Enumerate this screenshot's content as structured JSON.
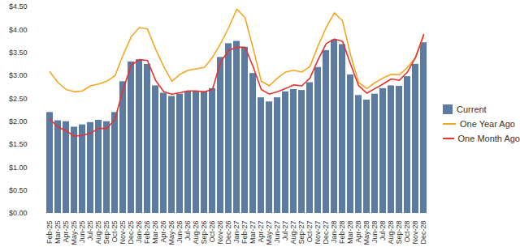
{
  "chart_data": {
    "type": "bar",
    "categories": [
      "Feb-25",
      "Mar-25",
      "Apr-25",
      "May-25",
      "Jun-25",
      "Jul-25",
      "Aug-25",
      "Sep-25",
      "Oct-25",
      "Nov-25",
      "Dec-25",
      "Jan-26",
      "Feb-26",
      "Mar-26",
      "Apr-26",
      "May-26",
      "Jun-26",
      "Jul-26",
      "Aug-26",
      "Sep-26",
      "Oct-26",
      "Nov-26",
      "Dec-26",
      "Jan-27",
      "Feb-27",
      "Mar-27",
      "Apr-27",
      "May-27",
      "Jun-27",
      "Jul-27",
      "Aug-27",
      "Sep-27",
      "Oct-27",
      "Nov-27",
      "Dec-27",
      "Jan-28",
      "Feb-28",
      "Mar-28",
      "Apr-28",
      "May-28",
      "Jun-28",
      "Jul-28",
      "Aug-28",
      "Sep-28",
      "Oct-28",
      "Nov-28",
      "Dec-28"
    ],
    "series": [
      {
        "name": "Current",
        "type": "bar",
        "color": "#5b7ba3",
        "values": [
          2.2,
          2.02,
          2.0,
          1.88,
          1.93,
          1.98,
          2.03,
          2.0,
          2.2,
          2.87,
          3.3,
          3.35,
          3.25,
          2.78,
          2.62,
          2.55,
          2.6,
          2.65,
          2.65,
          2.65,
          2.72,
          3.4,
          3.7,
          3.75,
          3.62,
          3.05,
          2.52,
          2.43,
          2.52,
          2.65,
          2.7,
          2.68,
          2.85,
          3.18,
          3.55,
          3.78,
          3.68,
          3.02,
          2.57,
          2.47,
          2.6,
          2.72,
          2.78,
          2.77,
          2.98,
          3.25,
          3.72
        ]
      },
      {
        "name": "One Year Ago",
        "type": "line",
        "color": "#f5a623",
        "values": [
          3.08,
          2.85,
          2.7,
          2.65,
          2.67,
          2.78,
          2.82,
          2.88,
          3.0,
          3.45,
          3.85,
          4.05,
          4.02,
          3.58,
          3.2,
          2.88,
          3.03,
          3.12,
          3.15,
          3.18,
          3.4,
          3.7,
          4.05,
          4.45,
          4.27,
          3.6,
          2.88,
          2.78,
          2.95,
          3.08,
          3.12,
          3.08,
          3.2,
          3.65,
          4.05,
          4.37,
          4.2,
          3.45,
          2.85,
          2.72,
          2.85,
          2.95,
          3.03,
          3.02,
          3.18,
          3.4,
          3.88
        ]
      },
      {
        "name": "One Month Ago",
        "type": "line",
        "color": "#e8322c",
        "values": [
          2.05,
          1.88,
          1.8,
          1.68,
          1.7,
          1.75,
          1.85,
          1.85,
          2.05,
          2.7,
          3.23,
          3.35,
          3.33,
          2.9,
          2.65,
          2.6,
          2.63,
          2.67,
          2.67,
          2.65,
          2.7,
          3.3,
          3.55,
          3.62,
          3.62,
          3.2,
          2.7,
          2.6,
          2.65,
          2.72,
          2.8,
          2.78,
          2.95,
          3.35,
          3.7,
          3.8,
          3.75,
          3.25,
          2.78,
          2.62,
          2.72,
          2.82,
          2.93,
          2.9,
          3.08,
          3.4,
          3.9
        ]
      }
    ],
    "ylim": [
      0,
      4.5
    ],
    "yticks": [
      {
        "value": 0,
        "label": "$0.00"
      },
      {
        "value": 0.5,
        "label": "$0.50"
      },
      {
        "value": 1,
        "label": "$1.00"
      },
      {
        "value": 1.5,
        "label": "$1.50"
      },
      {
        "value": 2,
        "label": "$2.00"
      },
      {
        "value": 2.5,
        "label": "$2.50"
      },
      {
        "value": 3,
        "label": "$3.00"
      },
      {
        "value": 3.5,
        "label": "$3.50"
      },
      {
        "value": 4,
        "label": "$4.00"
      },
      {
        "value": 4.5,
        "label": "$4.50"
      }
    ],
    "grid": false,
    "legend": "right"
  }
}
